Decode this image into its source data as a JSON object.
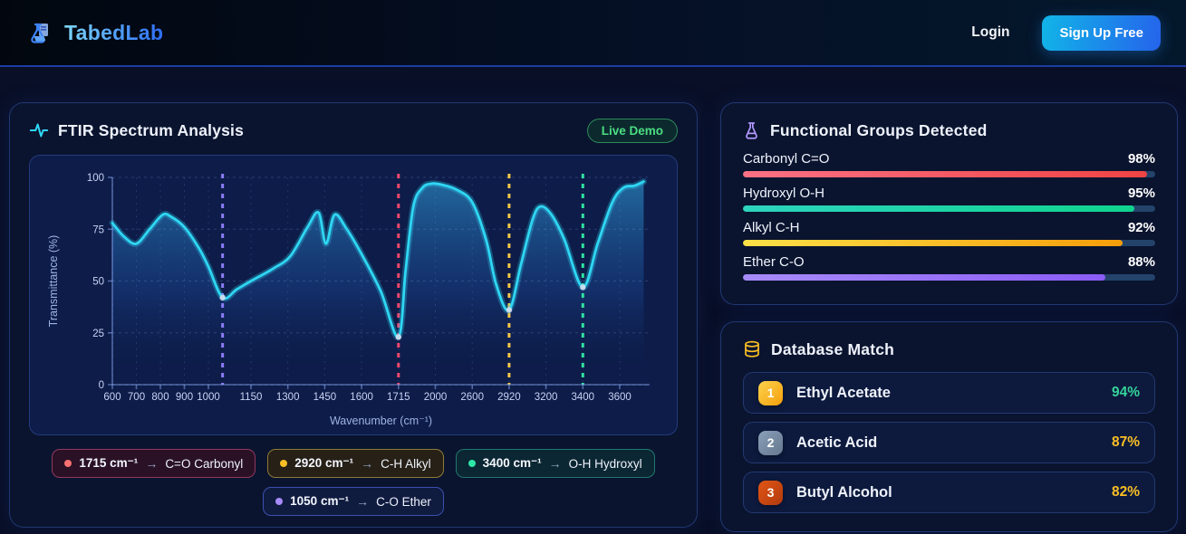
{
  "header": {
    "brand": "TabedLab",
    "login_label": "Login",
    "signup_label": "Sign Up Free",
    "accent_from": "#11b5e8",
    "accent_to": "#2563eb"
  },
  "spectrum_panel": {
    "title": "FTIR Spectrum Analysis",
    "badge": "Live Demo",
    "arrow_glyph": "→",
    "legend": [
      {
        "wavenumber": "1715 cm⁻¹",
        "group": "C=O Carbonyl",
        "dot": "#f87171",
        "bg": "#2a1126",
        "border": "#93385f"
      },
      {
        "wavenumber": "2920 cm⁻¹",
        "group": "C-H Alkyl",
        "dot": "#fbbf24",
        "bg": "#262017",
        "border": "#8d7b35"
      },
      {
        "wavenumber": "3400 cm⁻¹",
        "group": "O-H Hydroxyl",
        "dot": "#2ee6a8",
        "bg": "#0b2733",
        "border": "#21796e"
      },
      {
        "wavenumber": "1050 cm⁻¹",
        "group": "C-O Ether",
        "dot": "#a78bfa",
        "bg": "#101b40",
        "border": "#3c4fae"
      }
    ]
  },
  "chart_data": {
    "type": "area",
    "title": "FTIR Spectrum Analysis",
    "xlabel": "Wavenumber (cm⁻¹)",
    "ylabel": "Transmittance (%)",
    "ylim": [
      0,
      100
    ],
    "yticks": [
      0,
      25,
      50,
      75,
      100
    ],
    "xticks": [
      600,
      700,
      800,
      900,
      1000,
      1150,
      1300,
      1450,
      1600,
      1715,
      2000,
      2600,
      2920,
      3200,
      3400,
      3600
    ],
    "grid": true,
    "line_color": "#2fd6f3",
    "points": [
      [
        600,
        78
      ],
      [
        648,
        71.5
      ],
      [
        700,
        68
      ],
      [
        755,
        75
      ],
      [
        810,
        82
      ],
      [
        845,
        81
      ],
      [
        900,
        76
      ],
      [
        960,
        66
      ],
      [
        1000,
        57
      ],
      [
        1050,
        42
      ],
      [
        1100,
        46
      ],
      [
        1150,
        50
      ],
      [
        1240,
        56
      ],
      [
        1310,
        62
      ],
      [
        1380,
        76
      ],
      [
        1425,
        83
      ],
      [
        1455,
        68
      ],
      [
        1490,
        82
      ],
      [
        1540,
        75
      ],
      [
        1600,
        63
      ],
      [
        1660,
        45
      ],
      [
        1715,
        23
      ],
      [
        1770,
        55
      ],
      [
        1830,
        86
      ],
      [
        1900,
        95
      ],
      [
        1970,
        97
      ],
      [
        2100,
        96.5
      ],
      [
        2350,
        94
      ],
      [
        2600,
        88
      ],
      [
        2720,
        70
      ],
      [
        2810,
        48
      ],
      [
        2920,
        36
      ],
      [
        3010,
        58
      ],
      [
        3100,
        80
      ],
      [
        3160,
        86
      ],
      [
        3230,
        82
      ],
      [
        3300,
        70
      ],
      [
        3400,
        47
      ],
      [
        3480,
        68
      ],
      [
        3560,
        88
      ],
      [
        3620,
        95
      ],
      [
        3680,
        96
      ],
      [
        3730,
        98
      ]
    ],
    "markers": [
      {
        "x": 1050,
        "y": 42,
        "color": "#8b7cf8",
        "label": "C-O Ether"
      },
      {
        "x": 1715,
        "y": 23,
        "color": "#f5476b",
        "label": "C=O Carbonyl"
      },
      {
        "x": 2920,
        "y": 36,
        "color": "#f7c948",
        "label": "C-H Alkyl"
      },
      {
        "x": 3400,
        "y": 47,
        "color": "#2fe3a0",
        "label": "O-H Hydroxyl"
      }
    ]
  },
  "functional_groups": {
    "title": "Functional Groups Detected",
    "items": [
      {
        "label": "Carbonyl C=O",
        "percent": 98,
        "display": "98%",
        "color_from": "#fb7185",
        "color_to": "#ef4444"
      },
      {
        "label": "Hydroxyl O-H",
        "percent": 95,
        "display": "95%",
        "color_from": "#2dd4bf",
        "color_to": "#10d48e"
      },
      {
        "label": "Alkyl C-H",
        "percent": 92,
        "display": "92%",
        "color_from": "#fde047",
        "color_to": "#f59e0b"
      },
      {
        "label": "Ether C-O",
        "percent": 88,
        "display": "88%",
        "color_from": "#a78bfa",
        "color_to": "#8b5cf6"
      }
    ]
  },
  "database_match": {
    "title": "Database Match",
    "items": [
      {
        "rank": "1",
        "name": "Ethyl Acetate",
        "match": "94%",
        "match_color": "#34d399",
        "badge_from": "#fcd34d",
        "badge_to": "#f59e0b"
      },
      {
        "rank": "2",
        "name": "Acetic Acid",
        "match": "87%",
        "match_color": "#fbbf24",
        "badge_from": "#8aa0b8",
        "badge_to": "#64788f"
      },
      {
        "rank": "3",
        "name": "Butyl Alcohol",
        "match": "82%",
        "match_color": "#fbbf24",
        "badge_from": "#e05615",
        "badge_to": "#b23a0e"
      }
    ]
  }
}
